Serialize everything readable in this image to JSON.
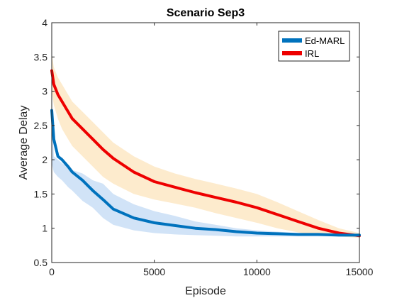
{
  "chart_data": {
    "type": "line",
    "title": "Scenario Sep3",
    "xlabel": "Episode",
    "ylabel": "Average Delay",
    "xlim": [
      0,
      15000
    ],
    "ylim": [
      0.5,
      4
    ],
    "xticks": [
      0,
      5000,
      10000,
      15000
    ],
    "xtick_labels": [
      "0",
      "5000",
      "10000",
      "15000"
    ],
    "yticks": [
      0.5,
      1,
      1.5,
      2,
      2.5,
      3,
      3.5,
      4
    ],
    "ytick_labels": [
      "0.5",
      "1",
      "1.5",
      "2",
      "2.5",
      "3",
      "3.5",
      "4"
    ],
    "legend": {
      "location": "top-right"
    },
    "series": [
      {
        "name": "Ed-MARL",
        "color": "#0072BD",
        "band_color": "#c6dcf5",
        "x": [
          0,
          100,
          300,
          500,
          800,
          1000,
          1500,
          2000,
          2500,
          3000,
          4000,
          5000,
          6000,
          7000,
          8000,
          9000,
          10000,
          11000,
          12000,
          13000,
          14000,
          15000
        ],
        "values": [
          2.72,
          2.3,
          2.05,
          2.0,
          1.9,
          1.82,
          1.7,
          1.55,
          1.42,
          1.28,
          1.15,
          1.08,
          1.04,
          1.0,
          0.98,
          0.95,
          0.93,
          0.92,
          0.91,
          0.91,
          0.9,
          0.9
        ],
        "upper": [
          2.75,
          2.05,
          2.0,
          1.95,
          1.9,
          1.85,
          1.8,
          1.7,
          1.65,
          1.5,
          1.35,
          1.25,
          1.18,
          1.1,
          1.05,
          1.0,
          0.97,
          0.95,
          0.93,
          0.92,
          0.91,
          0.91
        ],
        "lower": [
          1.95,
          1.82,
          1.75,
          1.7,
          1.6,
          1.55,
          1.4,
          1.3,
          1.15,
          1.05,
          0.97,
          0.93,
          0.91,
          0.9,
          0.89,
          0.88,
          0.88,
          0.88,
          0.88,
          0.88,
          0.88,
          0.88
        ]
      },
      {
        "name": "IRL",
        "color": "#EE0000",
        "band_color": "#fde6c0",
        "x": [
          0,
          100,
          300,
          500,
          800,
          1000,
          1500,
          2000,
          2500,
          3000,
          4000,
          5000,
          6000,
          7000,
          8000,
          9000,
          10000,
          11000,
          12000,
          13000,
          14000,
          15000
        ],
        "values": [
          3.3,
          3.1,
          2.95,
          2.85,
          2.7,
          2.6,
          2.45,
          2.3,
          2.15,
          2.02,
          1.82,
          1.68,
          1.6,
          1.52,
          1.45,
          1.38,
          1.3,
          1.2,
          1.1,
          1.0,
          0.93,
          0.89
        ],
        "upper": [
          3.55,
          3.35,
          3.2,
          3.1,
          2.95,
          2.85,
          2.7,
          2.55,
          2.4,
          2.25,
          2.05,
          1.9,
          1.8,
          1.72,
          1.65,
          1.58,
          1.5,
          1.38,
          1.25,
          1.12,
          1.0,
          0.93
        ],
        "lower": [
          3.0,
          2.8,
          2.6,
          2.45,
          2.3,
          2.2,
          2.05,
          1.9,
          1.75,
          1.65,
          1.5,
          1.42,
          1.36,
          1.3,
          1.22,
          1.15,
          1.08,
          1.0,
          0.94,
          0.9,
          0.88,
          0.86
        ]
      }
    ]
  }
}
